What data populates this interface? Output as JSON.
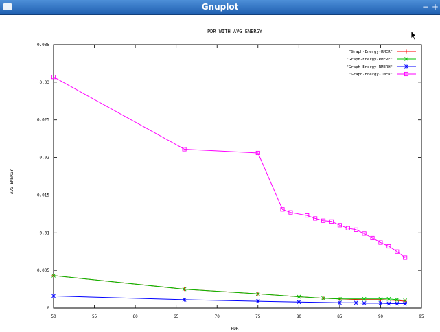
{
  "window": {
    "title": "Gnuplot",
    "minimize_glyph": "−",
    "close_glyph": "+"
  },
  "chart_data": {
    "type": "line",
    "title": "PDR WITH AVG ENERGY",
    "xlabel": "PDR",
    "ylabel": "AVG ENERGY",
    "xlim": [
      50,
      95
    ],
    "ylim": [
      0,
      0.035
    ],
    "xticks": [
      50,
      55,
      60,
      65,
      70,
      75,
      80,
      85,
      90,
      95
    ],
    "yticks": [
      0,
      0.005,
      0.01,
      0.015,
      0.02,
      0.025,
      0.03,
      0.035
    ],
    "xtick_labels": [
      "50",
      "55",
      "60",
      "65",
      "70",
      "75",
      "80",
      "85",
      "90",
      "95"
    ],
    "ytick_labels": [
      "0",
      "0.005",
      "0.01",
      "0.015",
      "0.02",
      "0.025",
      "0.03",
      "0.035"
    ],
    "grid": false,
    "legend_position": "top-right",
    "series": [
      {
        "name": "\"Graph-Energy-RMER\"",
        "color": "#ff0000",
        "marker": "plus",
        "x": [
          50,
          66,
          75,
          80,
          83,
          85,
          88,
          90,
          91,
          92,
          93
        ],
        "y": [
          0.0043,
          0.0025,
          0.0019,
          0.0015,
          0.0013,
          0.0012,
          0.0011,
          0.0011,
          0.00105,
          0.001,
          0.0009
        ]
      },
      {
        "name": "\"Graph-Energy-RMERE\"",
        "color": "#00c000",
        "marker": "cross",
        "x": [
          50,
          66,
          75,
          80,
          83,
          85,
          88,
          90,
          91,
          92,
          93
        ],
        "y": [
          0.0043,
          0.0025,
          0.0019,
          0.0015,
          0.0013,
          0.0012,
          0.0012,
          0.0012,
          0.0012,
          0.0011,
          0.001
        ]
      },
      {
        "name": "\"Graph-Energy-RMERH\"",
        "color": "#0000ff",
        "marker": "star",
        "x": [
          50,
          66,
          75,
          80,
          85,
          87,
          88,
          90,
          91,
          92,
          93
        ],
        "y": [
          0.0016,
          0.0011,
          0.0009,
          0.0008,
          0.0007,
          0.0007,
          0.00065,
          0.00065,
          0.0006,
          0.0006,
          0.0006
        ]
      },
      {
        "name": "\"Graph-Energy-TMER\"",
        "color": "#ff00ff",
        "marker": "square",
        "x": [
          50,
          66,
          75,
          78,
          79,
          81,
          82,
          83,
          84,
          85,
          86,
          87,
          88,
          89,
          90,
          91,
          92,
          93
        ],
        "y": [
          0.0307,
          0.0211,
          0.0206,
          0.0131,
          0.0127,
          0.0123,
          0.0119,
          0.0116,
          0.0115,
          0.011,
          0.0106,
          0.0104,
          0.0099,
          0.0093,
          0.0087,
          0.0082,
          0.0075,
          0.0067
        ]
      }
    ]
  }
}
